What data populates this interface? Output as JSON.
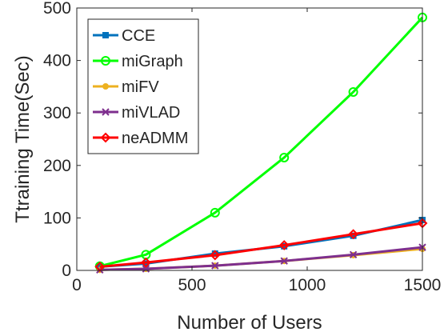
{
  "chart_data": {
    "type": "line",
    "xlabel": "Number of Users",
    "ylabel": "Ttraining Time(Sec)",
    "xlim": [
      0,
      1500
    ],
    "ylim": [
      0,
      500
    ],
    "xticks": [
      0,
      500,
      1000,
      1500
    ],
    "yticks": [
      0,
      100,
      200,
      300,
      400,
      500
    ],
    "grid": false,
    "legend_position": "top-left",
    "x": [
      100,
      300,
      600,
      900,
      1200,
      1500
    ],
    "series": [
      {
        "name": "CCE",
        "color": "#0072BD",
        "marker": "square",
        "values": [
          7,
          13,
          32,
          46,
          66,
          96
        ]
      },
      {
        "name": "miGraph",
        "color": "#00FF00",
        "marker": "circle",
        "values": [
          8,
          30,
          110,
          215,
          340,
          482
        ]
      },
      {
        "name": "miFV",
        "color": "#EDB120",
        "marker": "dot",
        "values": [
          1,
          3,
          9,
          18,
          29,
          41
        ]
      },
      {
        "name": "miVLAD",
        "color": "#7E2F8E",
        "marker": "x",
        "values": [
          1,
          3,
          9,
          18,
          30,
          44
        ]
      },
      {
        "name": "neADMM",
        "color": "#FF0000",
        "marker": "diamond",
        "values": [
          7,
          15,
          29,
          48,
          69,
          90
        ]
      }
    ]
  }
}
